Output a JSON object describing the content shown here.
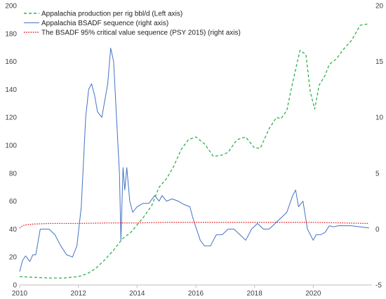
{
  "chart_data": {
    "type": "line",
    "legend_position": "top-left",
    "grid": false,
    "xlim": [
      2010,
      2022
    ],
    "ylim_left": [
      0,
      200
    ],
    "ylim_right": [
      -5,
      20
    ],
    "x_ticks": [
      "2010",
      "2012",
      "2014",
      "2016",
      "2018",
      "2020"
    ],
    "y_left_ticks": [
      "0",
      "20",
      "40",
      "60",
      "80",
      "100",
      "120",
      "140",
      "160",
      "180",
      "200"
    ],
    "y_right_ticks": [
      "-5",
      "0",
      "5",
      "10",
      "15",
      "20"
    ],
    "series": [
      {
        "name": "Appalachia production per rig bbl/d (Left axis)",
        "axis": "left",
        "color": "#2BB24C",
        "style": "dashed",
        "points": [
          [
            2010.0,
            6
          ],
          [
            2010.5,
            5.5
          ],
          [
            2011.0,
            5
          ],
          [
            2011.5,
            5
          ],
          [
            2012.0,
            6
          ],
          [
            2012.3,
            8
          ],
          [
            2012.6,
            12
          ],
          [
            2012.9,
            18
          ],
          [
            2013.2,
            25
          ],
          [
            2013.5,
            33
          ],
          [
            2013.8,
            38
          ],
          [
            2014.0,
            43
          ],
          [
            2014.2,
            48
          ],
          [
            2014.5,
            57
          ],
          [
            2014.75,
            70
          ],
          [
            2015.0,
            76
          ],
          [
            2015.25,
            85
          ],
          [
            2015.5,
            97
          ],
          [
            2015.75,
            104
          ],
          [
            2016.0,
            106
          ],
          [
            2016.3,
            101
          ],
          [
            2016.6,
            92
          ],
          [
            2016.9,
            93
          ],
          [
            2017.1,
            95
          ],
          [
            2017.4,
            104
          ],
          [
            2017.7,
            106
          ],
          [
            2018.0,
            98
          ],
          [
            2018.2,
            98
          ],
          [
            2018.5,
            112
          ],
          [
            2018.75,
            120
          ],
          [
            2018.9,
            119
          ],
          [
            2019.1,
            125
          ],
          [
            2019.3,
            145
          ],
          [
            2019.55,
            168
          ],
          [
            2019.75,
            165
          ],
          [
            2019.9,
            138
          ],
          [
            2020.05,
            126
          ],
          [
            2020.2,
            143
          ],
          [
            2020.4,
            150
          ],
          [
            2020.55,
            158
          ],
          [
            2020.8,
            162
          ],
          [
            2021.0,
            168
          ],
          [
            2021.3,
            175
          ],
          [
            2021.6,
            186
          ],
          [
            2021.9,
            187
          ]
        ]
      },
      {
        "name": "Appalachia BSADF sequence (right axis)",
        "axis": "right",
        "color": "#4472C4",
        "style": "solid",
        "points": [
          [
            2010.0,
            -3.8
          ],
          [
            2010.1,
            -2.8
          ],
          [
            2010.2,
            -2.4
          ],
          [
            2010.35,
            -2.9
          ],
          [
            2010.45,
            -2.3
          ],
          [
            2010.55,
            -2.3
          ],
          [
            2010.7,
            0
          ],
          [
            2010.85,
            0
          ],
          [
            2011.0,
            0
          ],
          [
            2011.2,
            -0.5
          ],
          [
            2011.4,
            -1.5
          ],
          [
            2011.6,
            -2.3
          ],
          [
            2011.8,
            -2.5
          ],
          [
            2011.95,
            -1.5
          ],
          [
            2012.1,
            2.0
          ],
          [
            2012.25,
            10.0
          ],
          [
            2012.35,
            12.5
          ],
          [
            2012.45,
            13.0
          ],
          [
            2012.55,
            12.0
          ],
          [
            2012.65,
            10.5
          ],
          [
            2012.8,
            10.0
          ],
          [
            2012.9,
            11.5
          ],
          [
            2013.0,
            13.0
          ],
          [
            2013.1,
            16.2
          ],
          [
            2013.2,
            15.0
          ],
          [
            2013.3,
            10.0
          ],
          [
            2013.4,
            5.0
          ],
          [
            2013.45,
            -1.0
          ],
          [
            2013.52,
            5.5
          ],
          [
            2013.58,
            3.5
          ],
          [
            2013.65,
            5.5
          ],
          [
            2013.75,
            2.5
          ],
          [
            2013.85,
            1.5
          ],
          [
            2014.0,
            2.0
          ],
          [
            2014.2,
            2.3
          ],
          [
            2014.4,
            2.3
          ],
          [
            2014.6,
            3.0
          ],
          [
            2014.75,
            2.5
          ],
          [
            2014.85,
            3.0
          ],
          [
            2015.0,
            2.5
          ],
          [
            2015.2,
            2.7
          ],
          [
            2015.4,
            2.5
          ],
          [
            2015.6,
            2.2
          ],
          [
            2015.8,
            2.0
          ],
          [
            2015.9,
            1.0
          ],
          [
            2016.0,
            0.2
          ],
          [
            2016.15,
            -1.0
          ],
          [
            2016.3,
            -1.5
          ],
          [
            2016.5,
            -1.5
          ],
          [
            2016.7,
            -0.5
          ],
          [
            2016.9,
            -0.5
          ],
          [
            2017.1,
            0
          ],
          [
            2017.3,
            0
          ],
          [
            2017.5,
            -0.5
          ],
          [
            2017.7,
            -1.0
          ],
          [
            2017.9,
            0
          ],
          [
            2018.1,
            0.5
          ],
          [
            2018.3,
            0
          ],
          [
            2018.5,
            0
          ],
          [
            2018.7,
            0.5
          ],
          [
            2018.9,
            1.0
          ],
          [
            2019.1,
            1.5
          ],
          [
            2019.3,
            3.0
          ],
          [
            2019.4,
            3.5
          ],
          [
            2019.5,
            2.0
          ],
          [
            2019.65,
            2.5
          ],
          [
            2019.8,
            0
          ],
          [
            2019.9,
            -0.5
          ],
          [
            2020.0,
            -1.0
          ],
          [
            2020.1,
            -0.5
          ],
          [
            2020.25,
            -0.5
          ],
          [
            2020.4,
            -0.3
          ],
          [
            2020.55,
            0.3
          ],
          [
            2020.7,
            0.2
          ],
          [
            2020.85,
            0.3
          ],
          [
            2021.0,
            0.3
          ],
          [
            2021.3,
            0.3
          ],
          [
            2021.6,
            0.2
          ],
          [
            2021.9,
            0.1
          ]
        ]
      },
      {
        "name": "The BSADF 95% critical value sequence (PSY 2015)  (right axis)",
        "axis": "right",
        "color": "#E3262A",
        "style": "dotted",
        "points": [
          [
            2010.0,
            0.1
          ],
          [
            2010.1,
            0.3
          ],
          [
            2010.25,
            0.4
          ],
          [
            2010.5,
            0.45
          ],
          [
            2011.0,
            0.5
          ],
          [
            2012.0,
            0.5
          ],
          [
            2013.0,
            0.55
          ],
          [
            2014.0,
            0.55
          ],
          [
            2015.0,
            0.6
          ],
          [
            2016.0,
            0.6
          ],
          [
            2017.0,
            0.6
          ],
          [
            2018.0,
            0.6
          ],
          [
            2019.0,
            0.6
          ],
          [
            2020.0,
            0.6
          ],
          [
            2021.0,
            0.55
          ],
          [
            2021.9,
            0.5
          ]
        ]
      }
    ]
  }
}
